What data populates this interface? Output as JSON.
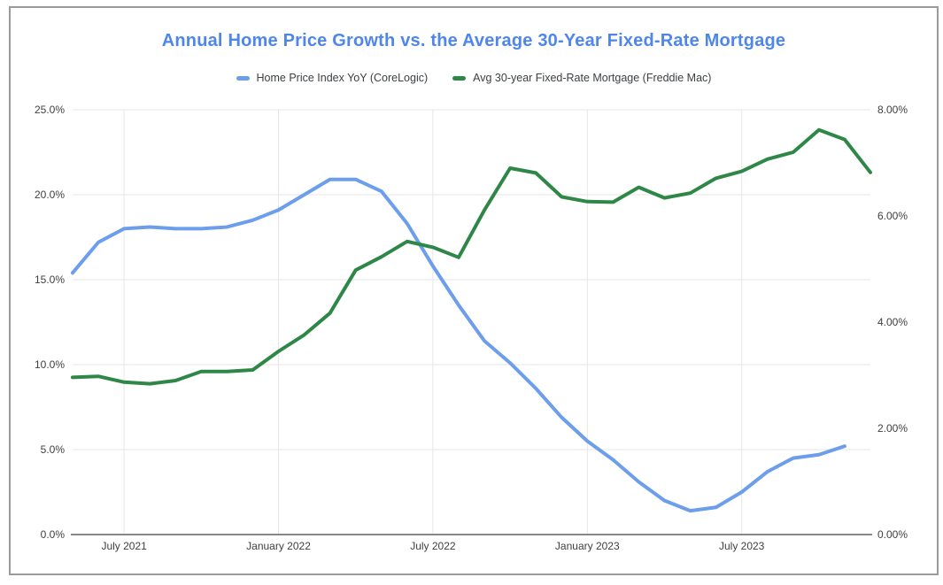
{
  "widget": {
    "background": "#ffffff",
    "border_color": "#9b9b9b"
  },
  "chart_data": {
    "type": "line",
    "title": "Annual Home Price Growth vs. the Average 30-Year Fixed-Rate Mortgage",
    "title_color": "#4e86ec",
    "legend_position": "top",
    "grid": true,
    "months": [
      "May 2021",
      "June 2021",
      "July 2021",
      "August 2021",
      "September 2021",
      "October 2021",
      "November 2021",
      "December 2021",
      "January 2022",
      "February 2022",
      "March 2022",
      "April 2022",
      "May 2022",
      "June 2022",
      "July 2022",
      "August 2022",
      "September 2022",
      "October 2022",
      "November 2022",
      "December 2022",
      "January 2023",
      "February 2023",
      "March 2023",
      "April 2023",
      "May 2023",
      "June 2023",
      "July 2023",
      "August 2023",
      "September 2023",
      "October 2023",
      "November 2023",
      "December 2023"
    ],
    "x_axis": {
      "tick_labels": [
        "July 2021",
        "January 2022",
        "July 2022",
        "January 2023",
        "July 2023"
      ],
      "tick_month_indices": [
        2,
        8,
        14,
        20,
        26
      ]
    },
    "left_axis": {
      "min": 0,
      "max": 25,
      "tick_values": [
        0,
        5,
        10,
        15,
        20,
        25
      ],
      "tick_labels": [
        "0.0%",
        "5.0%",
        "10.0%",
        "15.0%",
        "20.0%",
        "25.0%"
      ]
    },
    "right_axis": {
      "min": 0,
      "max": 8,
      "tick_values": [
        0,
        2,
        4,
        6,
        8
      ],
      "tick_labels": [
        "0.00%",
        "2.00%",
        "4.00%",
        "6.00%",
        "8.00%"
      ]
    },
    "series": [
      {
        "name": "Home Price Index YoY (CoreLogic)",
        "color": "#6d9eeb",
        "axis": "left",
        "values": [
          15.4,
          17.2,
          18.0,
          18.1,
          18.0,
          18.0,
          18.1,
          18.5,
          19.1,
          20.0,
          20.9,
          20.9,
          20.2,
          18.3,
          15.8,
          13.5,
          11.4,
          10.1,
          8.6,
          6.9,
          5.5,
          4.4,
          3.1,
          2.0,
          1.4,
          1.6,
          2.5,
          3.7,
          4.5,
          4.7,
          5.2
        ]
      },
      {
        "name": "Avg 30-year Fixed-Rate Mortgage (Freddie Mac)",
        "color": "#2e8747",
        "axis": "right",
        "values": [
          2.96,
          2.98,
          2.87,
          2.84,
          2.9,
          3.07,
          3.07,
          3.1,
          3.45,
          3.76,
          4.17,
          4.98,
          5.23,
          5.52,
          5.41,
          5.22,
          6.11,
          6.9,
          6.81,
          6.36,
          6.27,
          6.26,
          6.54,
          6.34,
          6.43,
          6.71,
          6.84,
          7.07,
          7.2,
          7.62,
          7.44,
          6.82
        ]
      }
    ],
    "colors": {
      "gridline": "#e6e6e6",
      "axis_line": "#616161",
      "tick_text": "#404040"
    }
  }
}
